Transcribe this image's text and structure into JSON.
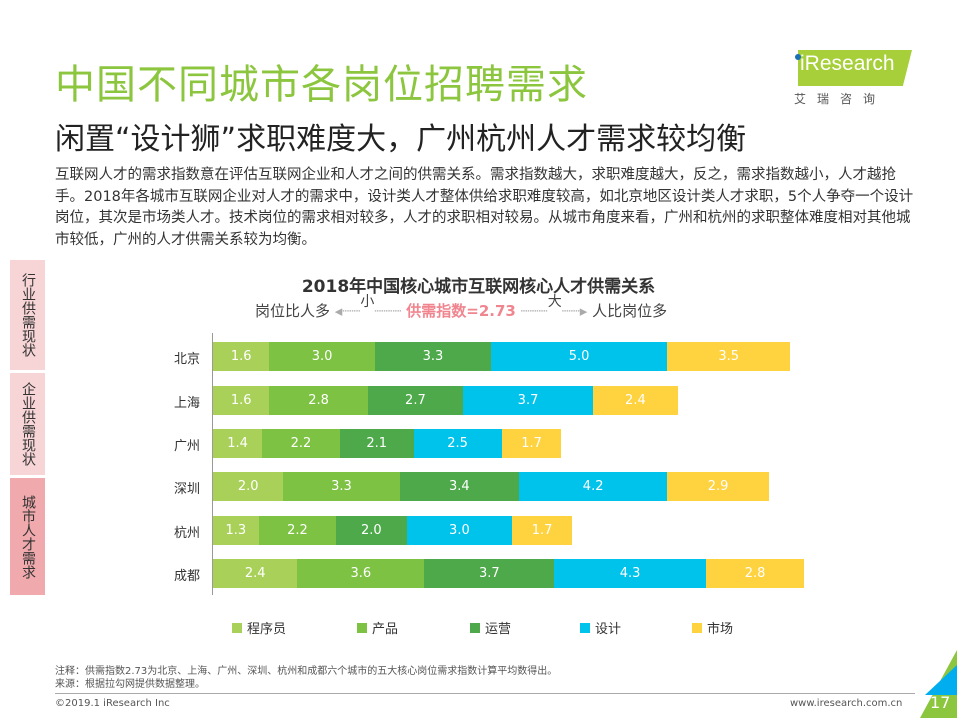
{
  "title": "中国不同城市各岗位招聘需求",
  "subtitle": "闲置“设计狮”求职难度大，广州杭州人才需求较均衡",
  "description": "互联网人才的需求指数意在评估互联网企业和人才之间的供需关系。需求指数越大，求职难度越大，反之，需求指数越小，人才越抢手。2018年各城市互联网企业对人才的需求中，设计类人才整体供给求职难度较高，如北京地区设计类人才求职，5个人争夺一个设计岗位，其次是市场类人才。技术岗位的需求相对较多，人才的求职相对较易。从城市角度来看，广州和杭州的求职整体难度相对其他城市较低，广州的人才供需关系较为均衡。",
  "logo": {
    "text": "iResearch",
    "cn": "艾瑞咨询"
  },
  "side_nav": [
    "行业供需现状",
    "企业供需现状",
    "城市人才需求"
  ],
  "scale": {
    "left": "岗位比人多",
    "small": "小",
    "index": "供需指数=2.73",
    "big": "大",
    "right": "人比岗位多",
    "index_color": "#f0858f"
  },
  "chart_data": {
    "type": "bar",
    "orientation": "horizontal",
    "stacked": true,
    "title": "2018年中国核心城市互联网核心人才供需关系",
    "categories": [
      "北京",
      "上海",
      "广州",
      "深圳",
      "杭州",
      "成都"
    ],
    "series": [
      {
        "name": "程序员",
        "color": "#a9d15a",
        "values": [
          1.6,
          1.6,
          1.4,
          2.0,
          1.3,
          2.4
        ]
      },
      {
        "name": "产品",
        "color": "#7dc242",
        "values": [
          3.0,
          2.8,
          2.2,
          3.3,
          2.2,
          3.6
        ]
      },
      {
        "name": "运营",
        "color": "#4ea94b",
        "values": [
          3.3,
          2.7,
          2.1,
          3.4,
          2.0,
          3.7
        ]
      },
      {
        "name": "设计",
        "color": "#00c3ec",
        "values": [
          5.0,
          3.7,
          2.5,
          4.2,
          3.0,
          4.3
        ]
      },
      {
        "name": "市场",
        "color": "#ffd23f",
        "values": [
          3.5,
          2.4,
          1.7,
          2.9,
          1.7,
          2.8
        ]
      }
    ],
    "legend": "bottom"
  },
  "notes": [
    "注释：供需指数2.73为北京、上海、广州、深圳、杭州和成都六个城市的五大核心岗位需求指数计算平均数得出。",
    "来源：根据拉勾网提供数据整理。"
  ],
  "footer": {
    "copyright": "©2019.1 iResearch Inc",
    "url": "www.iresearch.com.cn",
    "page": "17"
  }
}
